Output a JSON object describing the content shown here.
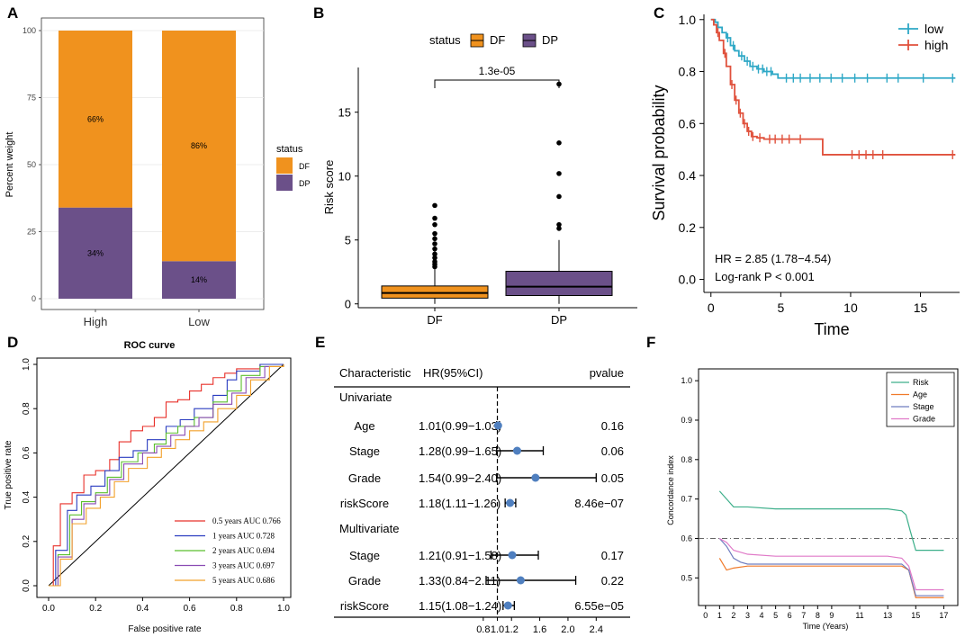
{
  "colors": {
    "df": "#f0921e",
    "dp": "#6b5089",
    "low": "#2ea8c6",
    "high": "#e0513c",
    "forest_point": "#4f7fbf",
    "panelA_bg": "#ffffff",
    "grid": "#e6e6e6"
  },
  "chart_data": [
    {
      "id": "A",
      "panel_label": "A",
      "type": "bar",
      "stacked": true,
      "categories": [
        "High",
        "Low"
      ],
      "series": [
        {
          "name": "DP",
          "values": [
            34,
            14
          ],
          "labels": [
            "34%",
            "14%"
          ]
        },
        {
          "name": "DF",
          "values": [
            66,
            86
          ],
          "labels": [
            "66%",
            "86%"
          ]
        }
      ],
      "ylabel": "Percent weight",
      "ylim": [
        0,
        100
      ],
      "yticks": [
        "0",
        "25",
        "50",
        "75",
        "100"
      ],
      "legend": {
        "title": "status",
        "entries": [
          "DF",
          "DP"
        ],
        "position": "right"
      }
    },
    {
      "id": "B",
      "panel_label": "B",
      "type": "box",
      "categories": [
        "DF",
        "DP"
      ],
      "boxes": [
        {
          "name": "DF",
          "min": 0.0,
          "q1": 0.45,
          "median": 0.85,
          "q3": 1.4,
          "whisker_high": 2.7,
          "outliers": [
            2.9,
            3.1,
            3.3,
            3.6,
            3.9,
            4.3,
            4.7,
            5.1,
            5.5,
            6.2,
            6.7,
            7.7
          ]
        },
        {
          "name": "DP",
          "min": 0.0,
          "q1": 0.65,
          "median": 1.35,
          "q3": 2.55,
          "whisker_high": 5.0,
          "outliers": [
            5.9,
            6.2,
            8.4,
            10.2,
            12.6,
            17.2
          ]
        }
      ],
      "ylabel": "Risk score",
      "ylim": [
        -0.3,
        18.5
      ],
      "yticks": [
        "0",
        "5",
        "10",
        "15"
      ],
      "pvalue_label": "1.3e-05",
      "legend": {
        "title": "status",
        "entries": [
          "DF",
          "DP"
        ],
        "position": "top"
      }
    },
    {
      "id": "C",
      "panel_label": "C",
      "type": "line",
      "subtype": "kaplan-meier",
      "xlabel": "Time",
      "ylabel": "Survival probability",
      "xlim": [
        -0.5,
        17.8
      ],
      "ylim": [
        -0.05,
        1.02
      ],
      "xticks": [
        "0",
        "5",
        "10",
        "15"
      ],
      "yticks": [
        "0.0",
        "0.2",
        "0.4",
        "0.6",
        "0.8",
        "1.0"
      ],
      "series": [
        {
          "name": "low",
          "x": [
            0,
            0.3,
            0.5,
            0.8,
            1.1,
            1.4,
            1.7,
            2.0,
            2.4,
            2.8,
            3.3,
            3.8,
            4.4,
            4.8,
            17.5
          ],
          "y": [
            1.0,
            0.99,
            0.97,
            0.95,
            0.93,
            0.9,
            0.88,
            0.86,
            0.84,
            0.82,
            0.81,
            0.8,
            0.79,
            0.775,
            0.775
          ],
          "censor_x": [
            1.2,
            1.6,
            2.2,
            2.6,
            3.0,
            3.4,
            3.7,
            4.0,
            4.3,
            5.4,
            5.9,
            6.4,
            7.1,
            7.8,
            8.6,
            9.4,
            10.3,
            11.2,
            12.6,
            13.4,
            15.2,
            17.3
          ]
        },
        {
          "name": "high",
          "x": [
            0,
            0.2,
            0.4,
            0.6,
            0.9,
            1.1,
            1.4,
            1.7,
            2.0,
            2.3,
            2.6,
            2.9,
            3.3,
            3.8,
            8.0,
            17.5
          ],
          "y": [
            1.0,
            0.98,
            0.95,
            0.92,
            0.87,
            0.82,
            0.75,
            0.69,
            0.64,
            0.6,
            0.57,
            0.55,
            0.545,
            0.54,
            0.48,
            0.48
          ],
          "censor_x": [
            0.5,
            1.0,
            1.5,
            1.8,
            2.1,
            2.4,
            2.7,
            3.0,
            3.5,
            4.2,
            4.6,
            5.1,
            5.6,
            6.4,
            10.1,
            10.6,
            11.1,
            11.6,
            12.3,
            17.3
          ]
        }
      ],
      "legend": {
        "entries": [
          "low",
          "high"
        ],
        "position": "top-right"
      },
      "annotations": [
        "HR = 2.85 (1.78−4.54)",
        "Log-rank P < 0.001"
      ]
    },
    {
      "id": "D",
      "panel_label": "D",
      "type": "line",
      "subtype": "roc",
      "title": "ROC curve",
      "xlabel": "False positive rate",
      "ylabel": "True positive rate",
      "xlim": [
        0,
        1
      ],
      "ylim": [
        0,
        1
      ],
      "xticks": [
        "0.0",
        "0.2",
        "0.4",
        "0.6",
        "0.8",
        "1.0"
      ],
      "yticks": [
        "0.0",
        "0.2",
        "0.4",
        "0.6",
        "0.8",
        "1.0"
      ],
      "series": [
        {
          "name": "0.5 years AUC 0.766",
          "color": "#e8302a",
          "x": [
            0,
            0.02,
            0.05,
            0.1,
            0.15,
            0.2,
            0.26,
            0.3,
            0.35,
            0.4,
            0.45,
            0.5,
            0.55,
            0.6,
            0.65,
            0.7,
            0.75,
            0.8,
            0.9,
            1.0
          ],
          "y": [
            0,
            0.18,
            0.37,
            0.42,
            0.5,
            0.52,
            0.57,
            0.65,
            0.7,
            0.72,
            0.76,
            0.83,
            0.84,
            0.88,
            0.91,
            0.94,
            0.96,
            0.98,
            1.0,
            1.0
          ]
        },
        {
          "name": "1 years AUC 0.728",
          "color": "#2a3cc0",
          "x": [
            0,
            0.03,
            0.08,
            0.12,
            0.18,
            0.24,
            0.3,
            0.36,
            0.42,
            0.5,
            0.56,
            0.62,
            0.7,
            0.76,
            0.8,
            0.9,
            1.0
          ],
          "y": [
            0,
            0.16,
            0.34,
            0.41,
            0.45,
            0.52,
            0.58,
            0.61,
            0.66,
            0.72,
            0.75,
            0.8,
            0.86,
            0.93,
            0.97,
            1.0,
            1.0
          ]
        },
        {
          "name": "2 years AUC 0.694",
          "color": "#5bbf2f",
          "x": [
            0,
            0.04,
            0.09,
            0.14,
            0.2,
            0.25,
            0.31,
            0.38,
            0.45,
            0.5,
            0.55,
            0.62,
            0.7,
            0.76,
            0.82,
            0.9,
            1.0
          ],
          "y": [
            0,
            0.14,
            0.32,
            0.38,
            0.42,
            0.49,
            0.56,
            0.6,
            0.64,
            0.69,
            0.72,
            0.76,
            0.83,
            0.88,
            0.95,
            0.99,
            1.0
          ]
        },
        {
          "name": "3 years AUC 0.697",
          "color": "#8a4bb3",
          "x": [
            0,
            0.04,
            0.1,
            0.15,
            0.2,
            0.26,
            0.32,
            0.4,
            0.46,
            0.52,
            0.58,
            0.64,
            0.7,
            0.78,
            0.84,
            0.92,
            1.0
          ],
          "y": [
            0,
            0.13,
            0.3,
            0.37,
            0.41,
            0.48,
            0.55,
            0.6,
            0.63,
            0.68,
            0.72,
            0.76,
            0.82,
            0.87,
            0.94,
            0.99,
            1.0
          ]
        },
        {
          "name": "5 years AUC 0.686",
          "color": "#f2a02a",
          "x": [
            0,
            0.05,
            0.1,
            0.16,
            0.22,
            0.28,
            0.34,
            0.42,
            0.48,
            0.54,
            0.6,
            0.66,
            0.72,
            0.8,
            0.86,
            0.94,
            1.0
          ],
          "y": [
            0,
            0.12,
            0.28,
            0.35,
            0.4,
            0.47,
            0.53,
            0.58,
            0.62,
            0.66,
            0.7,
            0.74,
            0.8,
            0.86,
            0.93,
            0.99,
            1.0
          ]
        }
      ],
      "legend": {
        "position": "bottom-right"
      }
    },
    {
      "id": "E",
      "panel_label": "E",
      "type": "forest",
      "headers": {
        "characteristic": "Characteristic",
        "hr": "HR(95%CI)",
        "pvalue": "pvalue"
      },
      "xlim": [
        0.7,
        2.6
      ],
      "xticks": [
        "0.8",
        "1.0",
        "1.2",
        "1.6",
        "2.0",
        "2.4"
      ],
      "reference": 1.0,
      "rows": [
        {
          "label": "Univariate",
          "header": true
        },
        {
          "label": "Age",
          "hr_text": "1.01(0.99−1.03)",
          "pvalue": "0.16",
          "hr": 1.01,
          "lo": 0.99,
          "hi": 1.03
        },
        {
          "label": "Stage",
          "hr_text": "1.28(0.99−1.65)",
          "pvalue": "0.06",
          "hr": 1.28,
          "lo": 0.99,
          "hi": 1.65
        },
        {
          "label": "Grade",
          "hr_text": "1.54(0.99−2.40)",
          "pvalue": "0.05",
          "hr": 1.54,
          "lo": 0.99,
          "hi": 2.4
        },
        {
          "label": "riskScore",
          "hr_text": "1.18(1.11−1.26)",
          "pvalue": "8.46e−07",
          "hr": 1.18,
          "lo": 1.11,
          "hi": 1.26
        },
        {
          "label": "Multivariate",
          "header": true
        },
        {
          "label": "Stage",
          "hr_text": "1.21(0.91−1.58)",
          "pvalue": "0.17",
          "hr": 1.21,
          "lo": 0.91,
          "hi": 1.58
        },
        {
          "label": "Grade",
          "hr_text": "1.33(0.84−2.11)",
          "pvalue": "0.22",
          "hr": 1.33,
          "lo": 0.84,
          "hi": 2.11
        },
        {
          "label": "riskScore",
          "hr_text": "1.15(1.08−1.24)",
          "pvalue": "6.55e−05",
          "hr": 1.15,
          "lo": 1.08,
          "hi": 1.24
        }
      ]
    },
    {
      "id": "F",
      "panel_label": "F",
      "type": "line",
      "xlabel": "Time (Years)",
      "ylabel": "Concordance index",
      "xlim": [
        -0.5,
        18
      ],
      "ylim": [
        0.43,
        1.03
      ],
      "xticks": [
        "0",
        "1",
        "2",
        "3",
        "4",
        "5",
        "6",
        "7",
        "8",
        "9",
        "11",
        "13",
        "15",
        "17"
      ],
      "yticks": [
        "0.5",
        "0.6",
        "0.7",
        "0.8",
        "0.9",
        "1.0"
      ],
      "reference_line": 0.6,
      "series": [
        {
          "name": "Risk",
          "color": "#3daf8a",
          "x": [
            1,
            1.5,
            2,
            3,
            5,
            8,
            11,
            13,
            14,
            14.3,
            14.6,
            15,
            17
          ],
          "y": [
            0.72,
            0.7,
            0.68,
            0.68,
            0.675,
            0.675,
            0.675,
            0.675,
            0.67,
            0.66,
            0.62,
            0.57,
            0.57
          ]
        },
        {
          "name": "Age",
          "color": "#f07a2a",
          "x": [
            1,
            1.5,
            2,
            3,
            5,
            8,
            11,
            13,
            14,
            14.5,
            15,
            17
          ],
          "y": [
            0.55,
            0.52,
            0.525,
            0.53,
            0.53,
            0.53,
            0.53,
            0.53,
            0.53,
            0.52,
            0.45,
            0.45
          ]
        },
        {
          "name": "Stage",
          "color": "#6f7dbf",
          "x": [
            1,
            1.5,
            2,
            2.5,
            3,
            5,
            8,
            11,
            13,
            14,
            14.5,
            15,
            17
          ],
          "y": [
            0.6,
            0.58,
            0.55,
            0.54,
            0.535,
            0.535,
            0.535,
            0.535,
            0.535,
            0.535,
            0.52,
            0.455,
            0.455
          ]
        },
        {
          "name": "Grade",
          "color": "#e07ac8",
          "x": [
            1,
            1.5,
            2,
            2.5,
            3,
            5,
            8,
            11,
            13,
            14,
            14.5,
            15,
            17
          ],
          "y": [
            0.6,
            0.59,
            0.57,
            0.565,
            0.56,
            0.555,
            0.555,
            0.555,
            0.555,
            0.55,
            0.53,
            0.47,
            0.47
          ]
        }
      ],
      "legend": {
        "entries": [
          "Risk",
          "Age",
          "Stage",
          "Grade"
        ],
        "position": "top-right"
      }
    }
  ]
}
